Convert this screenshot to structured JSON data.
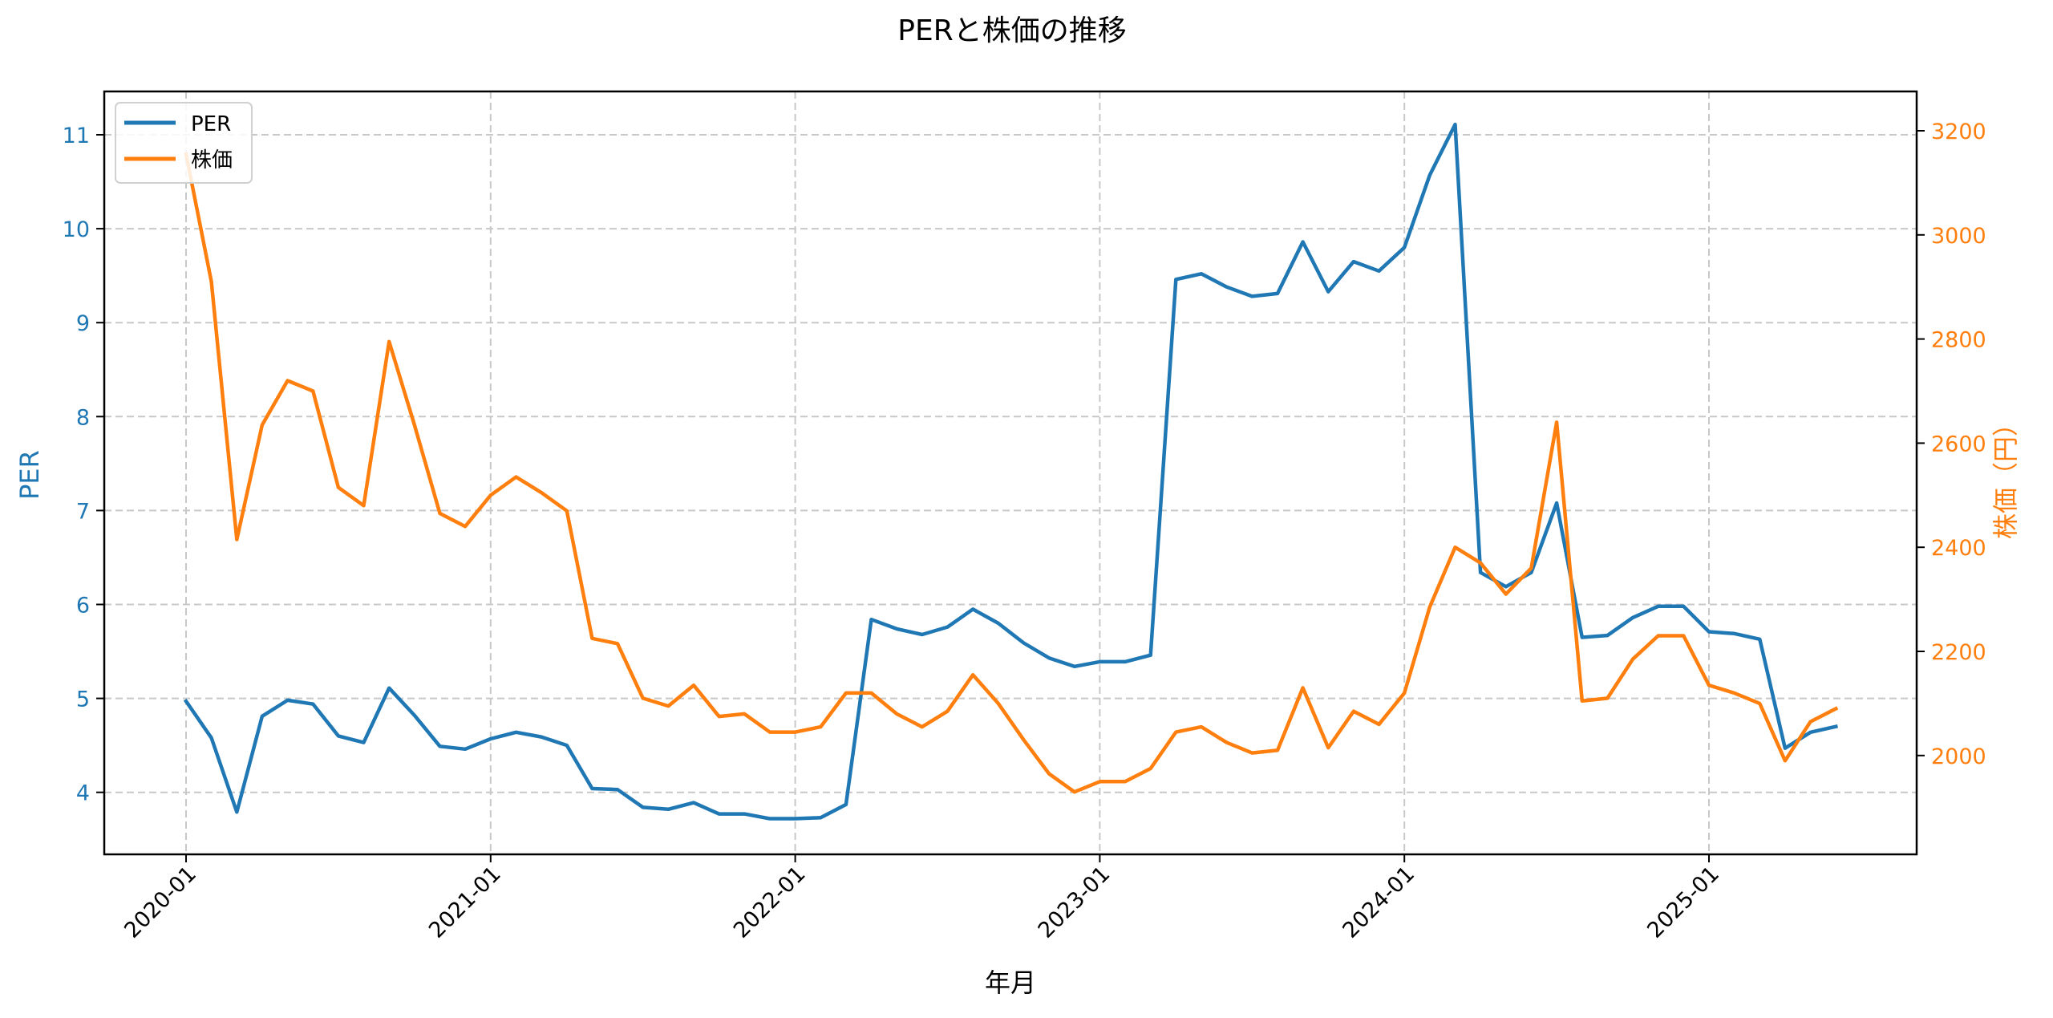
{
  "chart_data": {
    "type": "line",
    "title": "PERと株価の推移",
    "xlabel": "年月",
    "ylabel": "PER",
    "y2label": "株価（円）",
    "x_tick_labels": [
      "2020-01",
      "2021-01",
      "2022-01",
      "2023-01",
      "2024-01",
      "2025-01"
    ],
    "y_ticks": [
      4,
      5,
      6,
      7,
      8,
      9,
      10,
      11
    ],
    "y2_ticks": [
      2000,
      2200,
      2400,
      2600,
      2800,
      3000,
      3200
    ],
    "ylim": [
      3.35,
      11.45
    ],
    "y2lim": [
      1855,
      3290
    ],
    "grid": true,
    "legend_position": "upper left",
    "x": [
      "2020-01",
      "2020-02",
      "2020-03",
      "2020-04",
      "2020-05",
      "2020-06",
      "2020-07",
      "2020-08",
      "2020-09",
      "2020-10",
      "2020-11",
      "2020-12",
      "2021-01",
      "2021-02",
      "2021-03",
      "2021-04",
      "2021-05",
      "2021-06",
      "2021-07",
      "2021-08",
      "2021-09",
      "2021-10",
      "2021-11",
      "2021-12",
      "2022-01",
      "2022-02",
      "2022-03",
      "2022-04",
      "2022-05",
      "2022-06",
      "2022-07",
      "2022-08",
      "2022-09",
      "2022-10",
      "2022-11",
      "2022-12",
      "2023-01",
      "2023-02",
      "2023-03",
      "2023-04",
      "2023-05",
      "2023-06",
      "2023-07",
      "2023-08",
      "2023-09",
      "2023-10",
      "2023-11",
      "2023-12",
      "2024-01",
      "2024-02",
      "2024-03",
      "2024-04",
      "2024-05",
      "2024-06",
      "2024-07",
      "2024-08",
      "2024-09",
      "2024-10",
      "2024-11",
      "2024-12",
      "2025-01",
      "2025-02",
      "2025-03",
      "2025-04",
      "2025-05",
      "2025-06"
    ],
    "series": [
      {
        "name": "PER",
        "axis": "left",
        "color": "#1f77b4",
        "values": [
          4.97,
          4.58,
          3.79,
          4.81,
          4.98,
          4.94,
          4.6,
          4.53,
          5.11,
          4.82,
          4.49,
          4.46,
          4.57,
          4.64,
          4.59,
          4.5,
          4.04,
          4.03,
          3.84,
          3.82,
          3.89,
          3.77,
          3.77,
          3.72,
          3.72,
          3.73,
          3.87,
          5.84,
          5.74,
          5.68,
          5.76,
          5.95,
          5.8,
          5.59,
          5.43,
          5.34,
          5.39,
          5.39,
          5.46,
          9.46,
          9.52,
          9.38,
          9.28,
          9.31,
          9.86,
          9.33,
          9.65,
          9.55,
          9.8,
          10.57,
          11.11,
          6.34,
          6.19,
          6.34,
          7.08,
          5.65,
          5.67,
          5.86,
          5.98,
          5.98,
          5.71,
          5.69,
          5.63,
          4.47,
          4.64,
          4.7
        ]
      },
      {
        "name": "株価",
        "axis": "right",
        "color": "#ff7f0e",
        "values": [
          3155,
          2910,
          2415,
          2635,
          2720,
          2700,
          2515,
          2480,
          2795,
          2635,
          2465,
          2440,
          2500,
          2535,
          2505,
          2470,
          2225,
          2215,
          2110,
          2095,
          2135,
          2075,
          2080,
          2045,
          2045,
          2055,
          2120,
          2120,
          2080,
          2055,
          2085,
          2155,
          2100,
          2030,
          1965,
          1930,
          1950,
          1950,
          1975,
          2045,
          2055,
          2025,
          2005,
          2010,
          2130,
          2015,
          2085,
          2060,
          2120,
          2285,
          2400,
          2370,
          2310,
          2360,
          2640,
          2105,
          2110,
          2185,
          2230,
          2230,
          2135,
          2120,
          2100,
          1990,
          2065,
          2090
        ]
      }
    ]
  },
  "colors": {
    "per": "#1f77b4",
    "price": "#ff7f0e",
    "grid": "#c8c8c8",
    "axis": "#000000"
  },
  "legend": {
    "items": [
      {
        "label": "PER",
        "color": "#1f77b4"
      },
      {
        "label": "株価",
        "color": "#ff7f0e"
      }
    ]
  }
}
